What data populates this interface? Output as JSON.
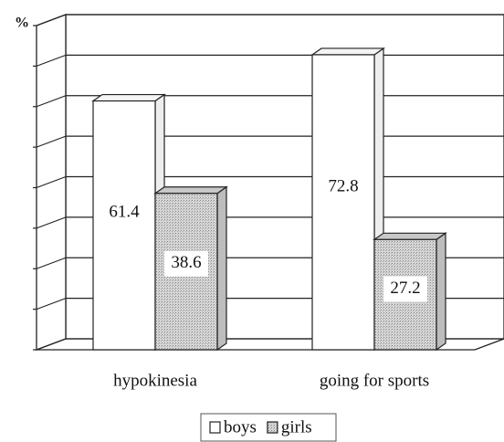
{
  "chart_data": {
    "type": "bar3d",
    "y_label": "%",
    "categories": [
      "hypokinesia",
      "going for sports"
    ],
    "series": [
      {
        "name": "boys",
        "color": "#ffffff",
        "values": [
          61.4,
          72.8
        ]
      },
      {
        "name": "girls",
        "color": "#cfcfcf",
        "values": [
          38.6,
          27.2
        ]
      }
    ],
    "ylim": [
      0,
      80
    ],
    "yticks": [
      0,
      10,
      20,
      30,
      40,
      50,
      60,
      70,
      80
    ],
    "grid": true
  }
}
